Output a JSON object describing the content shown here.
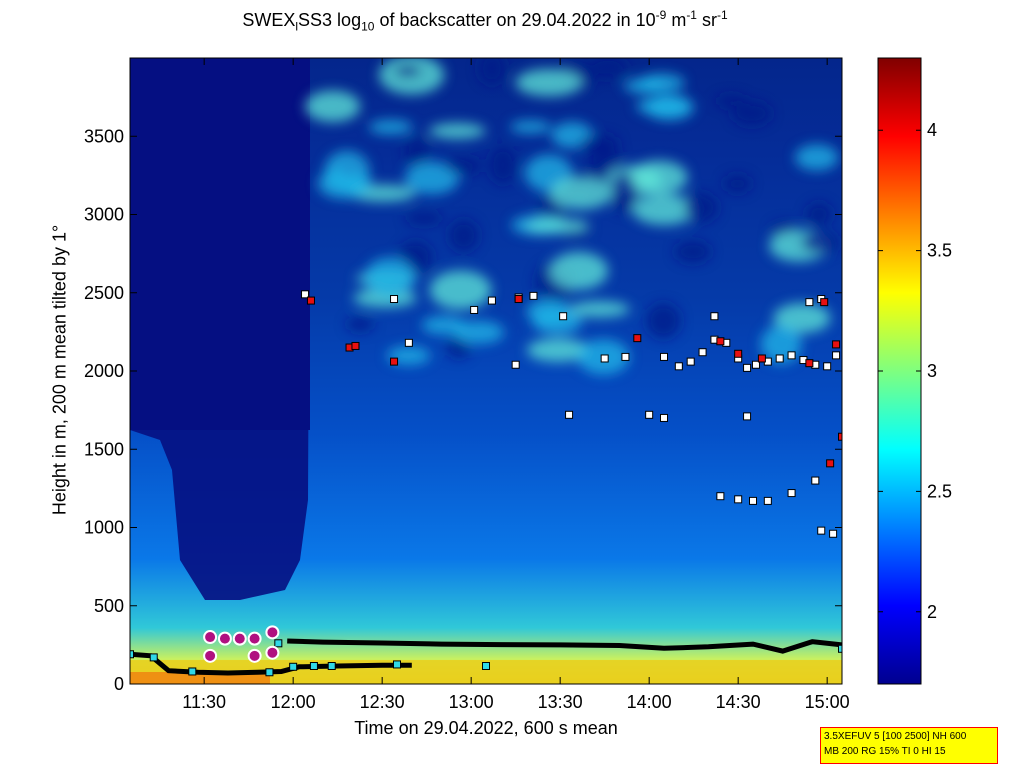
{
  "title": {
    "pre": "SWEX",
    "sub1": "l",
    "mid": "SS3 log",
    "sub2": "10",
    "post": " of backscatter on 29.04.2022 in 10",
    "sup1": "-9",
    "unit_m": " m",
    "sup2": "-1",
    "unit_sr": " sr",
    "sup3": "-1"
  },
  "info_box": {
    "line1": "3.5XEFUV 5 [100 2500] NH 600",
    "line2": "MB 200 RG 15% TI 0 HI 15",
    "bg_color": "#ffff00",
    "border_color": "#ff0000"
  },
  "chart_data": {
    "type": "heatmap",
    "title": "SWEX_lSS3 log10 of backscatter on 29.04.2022 in 10^-9 m^-1 sr^-1",
    "xlabel": "Time on 29.04.2022, 600 s mean",
    "ylabel": "Height in m, 200 m mean tilted by 1°",
    "x_ticks": [
      "11:30",
      "12:00",
      "12:30",
      "13:00",
      "13:30",
      "14:00",
      "14:30",
      "15:00"
    ],
    "x_tick_minutes": [
      690,
      720,
      750,
      780,
      810,
      840,
      870,
      900
    ],
    "xlim_minutes": [
      665,
      905
    ],
    "y_ticks": [
      0,
      500,
      1000,
      1500,
      2000,
      2500,
      3000,
      3500
    ],
    "ylim": [
      0,
      4000
    ],
    "colorbar": {
      "ticks": [
        2,
        2.5,
        3,
        3.5,
        4
      ],
      "range": [
        1.7,
        4.3
      ],
      "colormap": "jet"
    },
    "cloud_base_layers": [
      {
        "name": "lower layer",
        "color": "#000000",
        "points": [
          [
            665,
            190
          ],
          [
            672,
            180
          ],
          [
            678,
            85
          ],
          [
            688,
            75
          ],
          [
            698,
            70
          ],
          [
            708,
            75
          ],
          [
            716,
            80
          ],
          [
            722,
            110
          ],
          [
            735,
            115
          ],
          [
            750,
            120
          ],
          [
            760,
            120
          ]
        ]
      },
      {
        "name": "boundary layer top",
        "color": "#000000",
        "points": [
          [
            718,
            275
          ],
          [
            730,
            268
          ],
          [
            750,
            262
          ],
          [
            770,
            255
          ],
          [
            790,
            252
          ],
          [
            810,
            250
          ],
          [
            830,
            246
          ],
          [
            845,
            228
          ],
          [
            860,
            238
          ],
          [
            875,
            255
          ],
          [
            885,
            210
          ],
          [
            895,
            270
          ],
          [
            905,
            250
          ]
        ]
      }
    ],
    "scattered_markers_white": [
      [
        724,
        2490
      ],
      [
        754,
        2460
      ],
      [
        781,
        2390
      ],
      [
        787,
        2450
      ],
      [
        796,
        2470
      ],
      [
        801,
        2480
      ],
      [
        811,
        2350
      ],
      [
        795,
        2040
      ],
      [
        759,
        2180
      ],
      [
        825,
        2080
      ],
      [
        832,
        2090
      ],
      [
        845,
        2090
      ],
      [
        850,
        2030
      ],
      [
        854,
        2060
      ],
      [
        858,
        2120
      ],
      [
        862,
        2200
      ],
      [
        866,
        2180
      ],
      [
        870,
        2080
      ],
      [
        873,
        2020
      ],
      [
        876,
        2040
      ],
      [
        880,
        2060
      ],
      [
        884,
        2080
      ],
      [
        888,
        2100
      ],
      [
        892,
        2070
      ],
      [
        896,
        2040
      ],
      [
        900,
        2030
      ],
      [
        903,
        2100
      ],
      [
        873,
        1710
      ],
      [
        840,
        1720
      ],
      [
        845,
        1700
      ],
      [
        813,
        1720
      ],
      [
        864,
        1200
      ],
      [
        870,
        1180
      ],
      [
        875,
        1170
      ],
      [
        880,
        1170
      ],
      [
        888,
        1220
      ],
      [
        896,
        1300
      ],
      [
        898,
        980
      ],
      [
        902,
        960
      ],
      [
        894,
        2440
      ],
      [
        898,
        2460
      ],
      [
        862,
        2350
      ]
    ],
    "scattered_markers_red": [
      [
        726,
        2450
      ],
      [
        739,
        2150
      ],
      [
        741,
        2160
      ],
      [
        754,
        2060
      ],
      [
        796,
        2460
      ],
      [
        836,
        2210
      ],
      [
        864,
        2190
      ],
      [
        870,
        2110
      ],
      [
        894,
        2050
      ],
      [
        899,
        2440
      ],
      [
        903,
        2170
      ],
      [
        905,
        1580
      ],
      [
        901,
        1410
      ],
      [
        878,
        2080
      ]
    ],
    "surface_markers_cyan": [
      [
        665,
        190
      ],
      [
        673,
        170
      ],
      [
        686,
        80
      ],
      [
        712,
        75
      ],
      [
        715,
        260
      ],
      [
        720,
        110
      ],
      [
        727,
        115
      ],
      [
        733,
        115
      ],
      [
        755,
        125
      ],
      [
        785,
        115
      ],
      [
        905,
        225
      ]
    ],
    "precip_markers_magenta": [
      [
        692,
        300
      ],
      [
        697,
        290
      ],
      [
        692,
        180
      ],
      [
        702,
        290
      ],
      [
        707,
        180
      ],
      [
        707,
        290
      ],
      [
        713,
        330
      ],
      [
        713,
        200
      ]
    ]
  }
}
